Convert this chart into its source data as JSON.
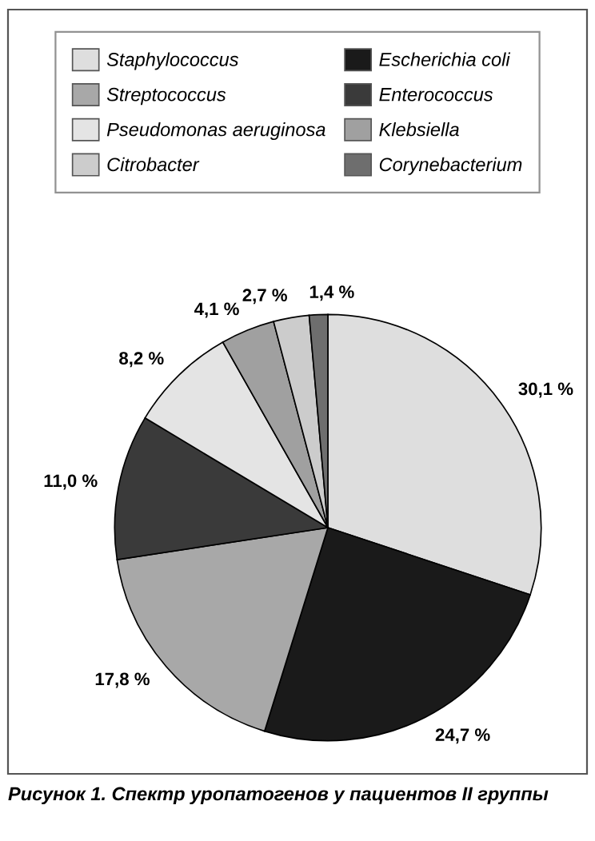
{
  "chart_data": {
    "type": "pie",
    "title": "Рисунок 1. Спектр уропатогенов у пациентов II группы",
    "categories": [
      "Staphylococcus",
      "Escherichia coli",
      "Streptococcus",
      "Enterococcus",
      "Pseudomonas aeruginosa",
      "Klebsiella",
      "Citrobacter",
      "Corynebacterium"
    ],
    "values": [
      30.1,
      24.7,
      17.8,
      11.0,
      8.2,
      4.1,
      2.7,
      1.4
    ],
    "value_labels": [
      "30,1 %",
      "24,7 %",
      "17,8 %",
      "11,0 %",
      "8,2 %",
      "4,1 %",
      "2,7 %",
      "1,4 %"
    ],
    "colors": [
      "#dedede",
      "#1a1a1a",
      "#a8a8a8",
      "#3a3a3a",
      "#e4e4e4",
      "#a0a0a0",
      "#cccccc",
      "#6e6e6e"
    ],
    "legend": "top"
  }
}
